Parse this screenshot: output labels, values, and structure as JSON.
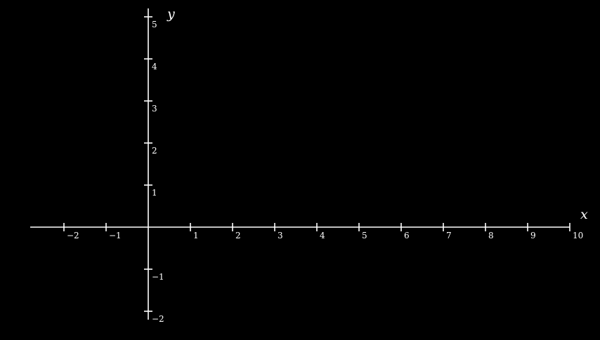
{
  "chart_data": {
    "type": "scatter",
    "title": "",
    "xlabel": "x",
    "ylabel": "y",
    "xlim": [
      -2.8,
      10
    ],
    "ylim": [
      -2.2,
      5.2
    ],
    "x_ticks": [
      -2,
      -1,
      1,
      2,
      3,
      4,
      5,
      6,
      7,
      8,
      9,
      10
    ],
    "y_ticks": [
      -2,
      -1,
      1,
      2,
      3,
      4,
      5
    ],
    "x_tick_labels": [
      "−2",
      "−1",
      "1",
      "2",
      "3",
      "4",
      "5",
      "6",
      "7",
      "8",
      "9",
      "10"
    ],
    "y_tick_labels": [
      "−2",
      "−1",
      "1",
      "2",
      "3",
      "4",
      "5"
    ],
    "grid": false,
    "series": []
  },
  "colors": {
    "background": "#000000",
    "axis": "#ffffff"
  }
}
